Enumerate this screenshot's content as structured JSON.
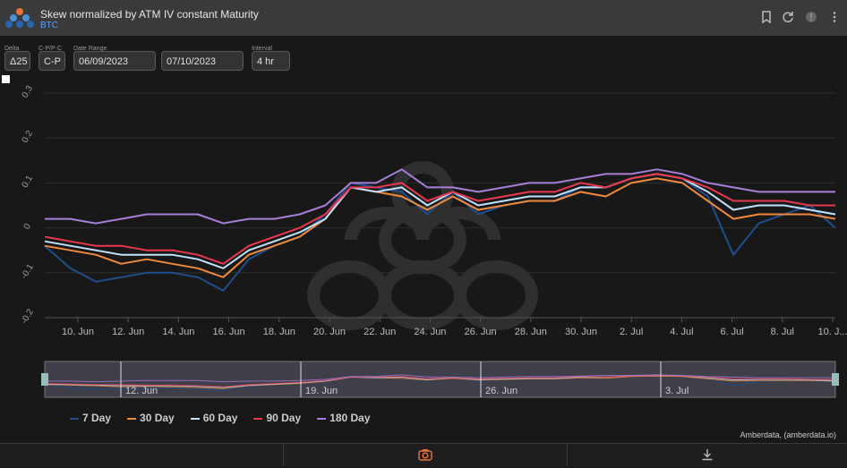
{
  "header": {
    "title": "Skew normalized by ATM IV constant Maturity",
    "subtitle": "BTC"
  },
  "controls": {
    "delta": {
      "label": "Delta",
      "value": "Δ25"
    },
    "type": {
      "label": "C-P/P-C",
      "value": "C-P"
    },
    "date_range": {
      "label": "Date Range",
      "start": "06/09/2023",
      "end": "07/10/2023"
    },
    "interval": {
      "label": "Interval",
      "value": "4 hr"
    }
  },
  "credit": "Amberdata, (amberdata.io)",
  "colors": {
    "7 Day": "#1f4e8c",
    "30 Day": "#f08a3c",
    "60 Day": "#bfe3ff",
    "90 Day": "#e8384f",
    "180 Day": "#a77ed8"
  },
  "chart_data": {
    "type": "line",
    "title": "",
    "xlabel": "",
    "ylabel": "",
    "ylim": [
      -0.2,
      0.3
    ],
    "yticks": [
      "0.3",
      "0.2",
      "0.1",
      "0",
      "-0.1",
      "-0.2"
    ],
    "xticks": [
      "10. Jun",
      "12. Jun",
      "14. Jun",
      "16. Jun",
      "18. Jun",
      "20. Jun",
      "22. Jun",
      "24. Jun",
      "26. Jun",
      "28. Jun",
      "30. Jun",
      "2. Jul",
      "4. Jul",
      "6. Jul",
      "8. Jul",
      "10. J..."
    ],
    "navigator_ticks": [
      "12. Jun",
      "19. Jun",
      "26. Jun",
      "3. Jul"
    ],
    "grid": true,
    "legend": "bottom",
    "x": [
      "2023-06-09",
      "2023-06-10",
      "2023-06-11",
      "2023-06-12",
      "2023-06-13",
      "2023-06-14",
      "2023-06-15",
      "2023-06-16",
      "2023-06-17",
      "2023-06-18",
      "2023-06-19",
      "2023-06-20",
      "2023-06-21",
      "2023-06-22",
      "2023-06-23",
      "2023-06-24",
      "2023-06-25",
      "2023-06-26",
      "2023-06-27",
      "2023-06-28",
      "2023-06-29",
      "2023-06-30",
      "2023-07-01",
      "2023-07-02",
      "2023-07-03",
      "2023-07-04",
      "2023-07-05",
      "2023-07-06",
      "2023-07-07",
      "2023-07-08",
      "2023-07-09",
      "2023-07-10"
    ],
    "series": [
      {
        "name": "7 Day",
        "values": [
          -0.04,
          -0.09,
          -0.12,
          -0.11,
          -0.1,
          -0.1,
          -0.11,
          -0.14,
          -0.07,
          -0.04,
          -0.02,
          0.03,
          0.1,
          0.09,
          0.08,
          0.03,
          0.08,
          0.03,
          0.05,
          0.06,
          0.06,
          0.09,
          0.09,
          0.11,
          0.12,
          0.11,
          0.07,
          -0.06,
          0.01,
          0.03,
          0.05,
          0.0
        ]
      },
      {
        "name": "30 Day",
        "values": [
          -0.04,
          -0.05,
          -0.06,
          -0.08,
          -0.07,
          -0.08,
          -0.09,
          -0.11,
          -0.06,
          -0.04,
          -0.02,
          0.02,
          0.09,
          0.08,
          0.07,
          0.04,
          0.07,
          0.04,
          0.05,
          0.06,
          0.06,
          0.08,
          0.07,
          0.1,
          0.11,
          0.1,
          0.06,
          0.02,
          0.03,
          0.03,
          0.03,
          0.02
        ]
      },
      {
        "name": "60 Day",
        "values": [
          -0.03,
          -0.04,
          -0.05,
          -0.06,
          -0.06,
          -0.06,
          -0.07,
          -0.09,
          -0.05,
          -0.03,
          -0.01,
          0.02,
          0.09,
          0.08,
          0.09,
          0.05,
          0.08,
          0.05,
          0.06,
          0.07,
          0.07,
          0.09,
          0.09,
          0.11,
          0.12,
          0.11,
          0.08,
          0.04,
          0.05,
          0.05,
          0.04,
          0.03
        ]
      },
      {
        "name": "90 Day",
        "values": [
          -0.02,
          -0.03,
          -0.04,
          -0.04,
          -0.05,
          -0.05,
          -0.06,
          -0.08,
          -0.04,
          -0.02,
          0.0,
          0.03,
          0.09,
          0.09,
          0.1,
          0.06,
          0.08,
          0.06,
          0.07,
          0.08,
          0.08,
          0.1,
          0.09,
          0.11,
          0.12,
          0.11,
          0.09,
          0.06,
          0.06,
          0.06,
          0.05,
          0.05
        ]
      },
      {
        "name": "180 Day",
        "values": [
          0.02,
          0.02,
          0.01,
          0.02,
          0.03,
          0.03,
          0.03,
          0.01,
          0.02,
          0.02,
          0.03,
          0.05,
          0.1,
          0.1,
          0.13,
          0.09,
          0.09,
          0.08,
          0.09,
          0.1,
          0.1,
          0.11,
          0.12,
          0.12,
          0.13,
          0.12,
          0.1,
          0.09,
          0.08,
          0.08,
          0.08,
          0.08
        ]
      }
    ]
  }
}
